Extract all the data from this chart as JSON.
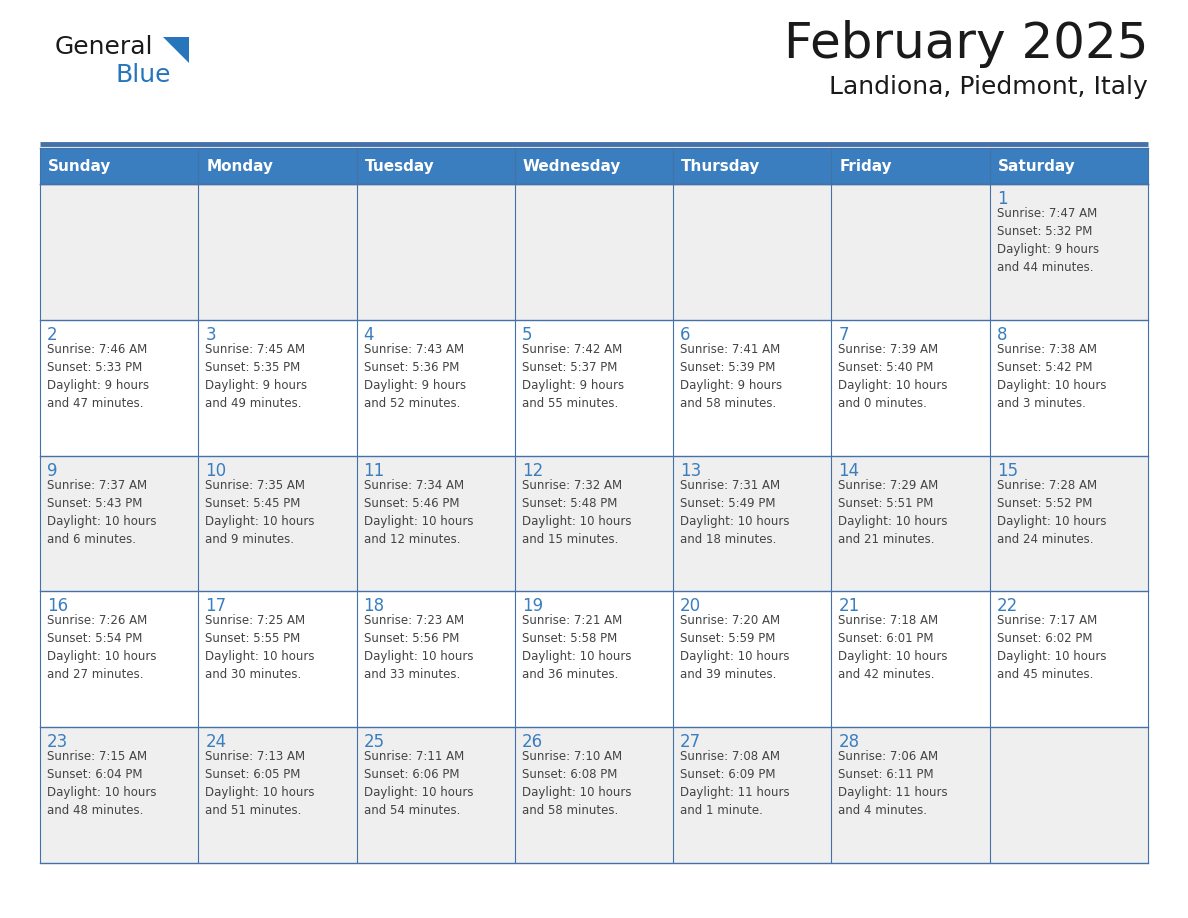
{
  "title": "February 2025",
  "subtitle": "Landiona, Piedmont, Italy",
  "header_bg": "#3A7EBF",
  "header_text": "#FFFFFF",
  "cell_bg_odd": "#EFEFEF",
  "cell_bg_even": "#FFFFFF",
  "border_color": "#4472A8",
  "day_number_color": "#3A7EBF",
  "text_color": "#444444",
  "logo_black": "#1a1a1a",
  "logo_blue": "#2776BC",
  "title_color": "#1a1a1a",
  "days_of_week": [
    "Sunday",
    "Monday",
    "Tuesday",
    "Wednesday",
    "Thursday",
    "Friday",
    "Saturday"
  ],
  "weeks": [
    [
      {
        "day": null,
        "info": null
      },
      {
        "day": null,
        "info": null
      },
      {
        "day": null,
        "info": null
      },
      {
        "day": null,
        "info": null
      },
      {
        "day": null,
        "info": null
      },
      {
        "day": null,
        "info": null
      },
      {
        "day": 1,
        "info": "Sunrise: 7:47 AM\nSunset: 5:32 PM\nDaylight: 9 hours\nand 44 minutes."
      }
    ],
    [
      {
        "day": 2,
        "info": "Sunrise: 7:46 AM\nSunset: 5:33 PM\nDaylight: 9 hours\nand 47 minutes."
      },
      {
        "day": 3,
        "info": "Sunrise: 7:45 AM\nSunset: 5:35 PM\nDaylight: 9 hours\nand 49 minutes."
      },
      {
        "day": 4,
        "info": "Sunrise: 7:43 AM\nSunset: 5:36 PM\nDaylight: 9 hours\nand 52 minutes."
      },
      {
        "day": 5,
        "info": "Sunrise: 7:42 AM\nSunset: 5:37 PM\nDaylight: 9 hours\nand 55 minutes."
      },
      {
        "day": 6,
        "info": "Sunrise: 7:41 AM\nSunset: 5:39 PM\nDaylight: 9 hours\nand 58 minutes."
      },
      {
        "day": 7,
        "info": "Sunrise: 7:39 AM\nSunset: 5:40 PM\nDaylight: 10 hours\nand 0 minutes."
      },
      {
        "day": 8,
        "info": "Sunrise: 7:38 AM\nSunset: 5:42 PM\nDaylight: 10 hours\nand 3 minutes."
      }
    ],
    [
      {
        "day": 9,
        "info": "Sunrise: 7:37 AM\nSunset: 5:43 PM\nDaylight: 10 hours\nand 6 minutes."
      },
      {
        "day": 10,
        "info": "Sunrise: 7:35 AM\nSunset: 5:45 PM\nDaylight: 10 hours\nand 9 minutes."
      },
      {
        "day": 11,
        "info": "Sunrise: 7:34 AM\nSunset: 5:46 PM\nDaylight: 10 hours\nand 12 minutes."
      },
      {
        "day": 12,
        "info": "Sunrise: 7:32 AM\nSunset: 5:48 PM\nDaylight: 10 hours\nand 15 minutes."
      },
      {
        "day": 13,
        "info": "Sunrise: 7:31 AM\nSunset: 5:49 PM\nDaylight: 10 hours\nand 18 minutes."
      },
      {
        "day": 14,
        "info": "Sunrise: 7:29 AM\nSunset: 5:51 PM\nDaylight: 10 hours\nand 21 minutes."
      },
      {
        "day": 15,
        "info": "Sunrise: 7:28 AM\nSunset: 5:52 PM\nDaylight: 10 hours\nand 24 minutes."
      }
    ],
    [
      {
        "day": 16,
        "info": "Sunrise: 7:26 AM\nSunset: 5:54 PM\nDaylight: 10 hours\nand 27 minutes."
      },
      {
        "day": 17,
        "info": "Sunrise: 7:25 AM\nSunset: 5:55 PM\nDaylight: 10 hours\nand 30 minutes."
      },
      {
        "day": 18,
        "info": "Sunrise: 7:23 AM\nSunset: 5:56 PM\nDaylight: 10 hours\nand 33 minutes."
      },
      {
        "day": 19,
        "info": "Sunrise: 7:21 AM\nSunset: 5:58 PM\nDaylight: 10 hours\nand 36 minutes."
      },
      {
        "day": 20,
        "info": "Sunrise: 7:20 AM\nSunset: 5:59 PM\nDaylight: 10 hours\nand 39 minutes."
      },
      {
        "day": 21,
        "info": "Sunrise: 7:18 AM\nSunset: 6:01 PM\nDaylight: 10 hours\nand 42 minutes."
      },
      {
        "day": 22,
        "info": "Sunrise: 7:17 AM\nSunset: 6:02 PM\nDaylight: 10 hours\nand 45 minutes."
      }
    ],
    [
      {
        "day": 23,
        "info": "Sunrise: 7:15 AM\nSunset: 6:04 PM\nDaylight: 10 hours\nand 48 minutes."
      },
      {
        "day": 24,
        "info": "Sunrise: 7:13 AM\nSunset: 6:05 PM\nDaylight: 10 hours\nand 51 minutes."
      },
      {
        "day": 25,
        "info": "Sunrise: 7:11 AM\nSunset: 6:06 PM\nDaylight: 10 hours\nand 54 minutes."
      },
      {
        "day": 26,
        "info": "Sunrise: 7:10 AM\nSunset: 6:08 PM\nDaylight: 10 hours\nand 58 minutes."
      },
      {
        "day": 27,
        "info": "Sunrise: 7:08 AM\nSunset: 6:09 PM\nDaylight: 11 hours\nand 1 minute."
      },
      {
        "day": 28,
        "info": "Sunrise: 7:06 AM\nSunset: 6:11 PM\nDaylight: 11 hours\nand 4 minutes."
      },
      {
        "day": null,
        "info": null
      }
    ]
  ],
  "fig_width": 11.88,
  "fig_height": 9.18,
  "dpi": 100
}
